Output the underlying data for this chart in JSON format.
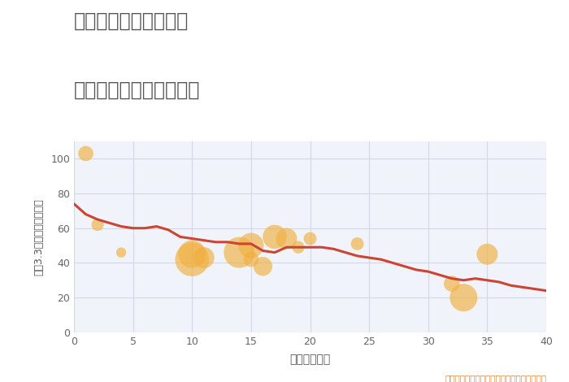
{
  "title_line1": "兵庫県姫路市青山北の",
  "title_line2": "築年数別中古戸建て価格",
  "xlabel": "築年数（年）",
  "ylabel": "坪（3.3㎡）単価（万円）",
  "annotation": "円の大きさは、取引のあった物件面積を示す",
  "background_color": "#ffffff",
  "plot_bg_color": "#f0f3f9",
  "grid_color": "#d0d8eb",
  "title_color": "#555555",
  "line_color": "#cc4433",
  "scatter_color": "#f0b040",
  "scatter_alpha": 0.65,
  "annotation_color": "#cc8844",
  "xlim": [
    0,
    40
  ],
  "ylim": [
    0,
    110
  ],
  "xticks": [
    0,
    5,
    10,
    15,
    20,
    25,
    30,
    35,
    40
  ],
  "yticks": [
    0,
    20,
    40,
    60,
    80,
    100
  ],
  "line_x": [
    0,
    1,
    2,
    3,
    4,
    5,
    6,
    7,
    8,
    9,
    10,
    11,
    12,
    13,
    14,
    15,
    16,
    17,
    18,
    19,
    20,
    21,
    22,
    23,
    24,
    25,
    26,
    27,
    28,
    29,
    30,
    31,
    32,
    33,
    34,
    35,
    36,
    37,
    38,
    39,
    40
  ],
  "line_y": [
    74,
    68,
    65,
    63,
    61,
    60,
    60,
    61,
    59,
    55,
    54,
    53,
    52,
    52,
    51,
    51,
    47,
    46,
    49,
    49,
    49,
    49,
    48,
    46,
    44,
    43,
    42,
    40,
    38,
    36,
    35,
    33,
    31,
    30,
    31,
    30,
    29,
    27,
    26,
    25,
    24
  ],
  "scatter_x": [
    1,
    2,
    4,
    10,
    10,
    11,
    14,
    15,
    15,
    16,
    17,
    18,
    19,
    20,
    24,
    32,
    33,
    35
  ],
  "scatter_y": [
    103,
    62,
    46,
    45,
    42,
    43,
    46,
    50,
    42,
    38,
    55,
    54,
    49,
    54,
    51,
    28,
    20,
    45
  ],
  "scatter_size": [
    180,
    120,
    80,
    600,
    900,
    350,
    750,
    500,
    180,
    280,
    450,
    350,
    120,
    130,
    130,
    200,
    600,
    350
  ]
}
